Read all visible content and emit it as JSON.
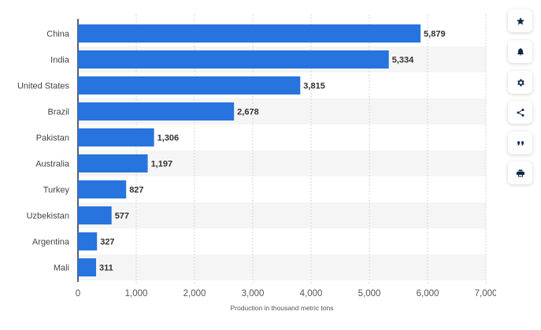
{
  "chart_data": {
    "type": "bar",
    "orientation": "horizontal",
    "categories": [
      "China",
      "India",
      "United States",
      "Brazil",
      "Pakistan",
      "Australia",
      "Turkey",
      "Uzbekistan",
      "Argentina",
      "Mali"
    ],
    "values": [
      5879,
      5334,
      3815,
      2678,
      1306,
      1197,
      827,
      577,
      327,
      311
    ],
    "value_labels": [
      "5,879",
      "5,334",
      "3,815",
      "2,678",
      "1,306",
      "1,197",
      "827",
      "577",
      "327",
      "311"
    ],
    "xlabel": "Production in thousand metric tons",
    "xlim": [
      0,
      7000
    ],
    "xticks": [
      0,
      1000,
      2000,
      3000,
      4000,
      5000,
      6000,
      7000
    ],
    "xtick_labels": [
      "0",
      "1,000",
      "2,000",
      "3,000",
      "4,000",
      "5,000",
      "6,000",
      "7,000"
    ],
    "grid": true,
    "bar_color": "#2774de",
    "stripe_color": "#f5f5f5"
  },
  "toolbar": [
    {
      "icon": "star-icon",
      "name": "favorite-button"
    },
    {
      "icon": "bell-icon",
      "name": "notification-button"
    },
    {
      "icon": "gear-icon",
      "name": "settings-button"
    },
    {
      "icon": "share-icon",
      "name": "share-button"
    },
    {
      "icon": "quote-icon",
      "name": "cite-button"
    },
    {
      "icon": "print-icon",
      "name": "print-button"
    }
  ]
}
